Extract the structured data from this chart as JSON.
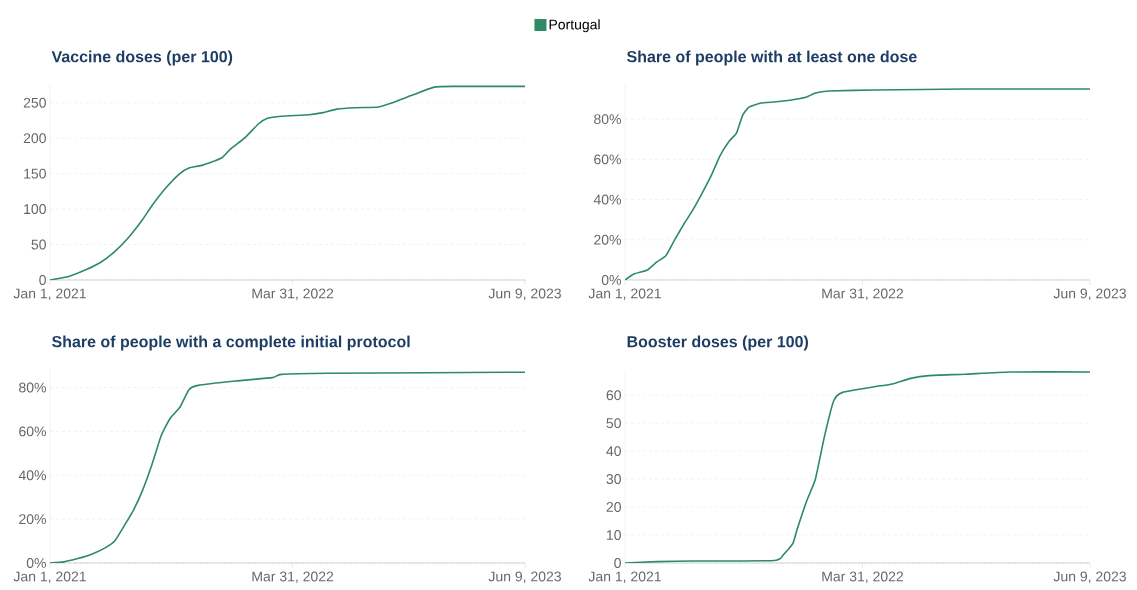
{
  "chart_data": [
    {
      "type": "line",
      "title": "Vaccine doses (per 100)",
      "legend": "top",
      "grid": "y",
      "marker": "none",
      "line_style": "solid",
      "x": [
        "2021-01-01",
        "2021-02-05",
        "2021-03-11",
        "2021-04-06",
        "2021-05-02",
        "2021-05-28",
        "2021-06-23",
        "2021-07-11",
        "2021-08-06",
        "2021-09-01",
        "2021-09-18",
        "2021-10-14",
        "2021-11-18",
        "2021-12-05",
        "2021-12-31",
        "2022-01-26",
        "2022-02-12",
        "2022-03-10",
        "2022-05-01",
        "2022-05-27",
        "2022-06-22",
        "2022-07-27",
        "2022-09-08",
        "2022-10-04",
        "2022-11-08",
        "2022-12-21",
        "2023-02-03",
        "2023-06-09"
      ],
      "series": [
        {
          "name": "Portugal",
          "color": "#2e8a66",
          "values": [
            0,
            5,
            15,
            25,
            40,
            60,
            85,
            105,
            130,
            150,
            158,
            162,
            172,
            185,
            200,
            220,
            228,
            231,
            233,
            236,
            241,
            243,
            244,
            250,
            260,
            272,
            273,
            273
          ]
        }
      ],
      "xlim": [
        "2021-01-01",
        "2023-06-09"
      ],
      "xticks": [
        {
          "value": "2021-01-01",
          "label": "Jan 1, 2021"
        },
        {
          "value": "2022-03-31",
          "label": "Mar 31, 2022"
        },
        {
          "value": "2023-06-09",
          "label": "Jun 9, 2023"
        }
      ],
      "ylim": [
        0,
        275
      ],
      "yticks": [
        0,
        50,
        100,
        150,
        200,
        250
      ]
    },
    {
      "type": "line",
      "title": "Share of people with at least one dose",
      "grid": "y",
      "marker": "none",
      "line_style": "solid",
      "x": [
        "2021-01-01",
        "2021-01-18",
        "2021-02-13",
        "2021-03-03",
        "2021-03-20",
        "2021-04-06",
        "2021-04-24",
        "2021-05-11",
        "2021-05-28",
        "2021-06-15",
        "2021-07-02",
        "2021-07-19",
        "2021-08-02",
        "2021-08-14",
        "2021-08-26",
        "2021-09-18",
        "2021-10-31",
        "2021-11-26",
        "2021-12-14",
        "2021-12-31",
        "2022-01-26",
        "2022-04-23",
        "2022-10-13",
        "2023-06-09"
      ],
      "series": [
        {
          "color": "#2e8a66",
          "values": [
            0,
            3,
            5,
            9,
            12,
            20,
            28,
            35,
            43,
            52,
            62,
            69,
            73,
            82,
            86,
            88,
            89,
            90,
            91,
            93,
            94,
            94.5,
            95,
            95
          ]
        }
      ],
      "xlim": [
        "2021-01-01",
        "2023-06-09"
      ],
      "xticks": [
        {
          "value": "2021-01-01",
          "label": "Jan 1, 2021"
        },
        {
          "value": "2022-03-31",
          "label": "Mar 31, 2022"
        },
        {
          "value": "2023-06-09",
          "label": "Jun 9, 2023"
        }
      ],
      "ylim": [
        0,
        97
      ],
      "yticks": [
        {
          "value": 0,
          "label": "0%"
        },
        {
          "value": 20,
          "label": "20%"
        },
        {
          "value": 40,
          "label": "40%"
        },
        {
          "value": 60,
          "label": "60%"
        },
        {
          "value": 80,
          "label": "80%"
        }
      ]
    },
    {
      "type": "line",
      "title": "Share of people with a complete initial protocol",
      "grid": "y",
      "marker": "none",
      "line_style": "solid",
      "x": [
        "2021-01-01",
        "2021-01-27",
        "2021-02-22",
        "2021-03-20",
        "2021-04-15",
        "2021-05-02",
        "2021-05-20",
        "2021-06-06",
        "2021-06-23",
        "2021-07-11",
        "2021-07-28",
        "2021-08-14",
        "2021-09-01",
        "2021-09-18",
        "2021-10-05",
        "2021-12-14",
        "2022-02-21",
        "2022-03-10",
        "2022-06-05",
        "2023-06-09"
      ],
      "series": [
        {
          "color": "#2e8a66",
          "values": [
            0,
            0.5,
            2,
            4,
            7,
            10,
            17,
            24,
            33,
            45,
            58,
            66,
            71,
            79,
            81,
            83,
            84.5,
            86,
            86.5,
            87
          ]
        }
      ],
      "xlim": [
        "2021-01-01",
        "2023-06-09"
      ],
      "xticks": [
        {
          "value": "2021-01-01",
          "label": "Jan 1, 2021"
        },
        {
          "value": "2022-03-31",
          "label": "Mar 31, 2022"
        },
        {
          "value": "2023-06-09",
          "label": "Jun 9, 2023"
        }
      ],
      "ylim": [
        0,
        88
      ],
      "yticks": [
        {
          "value": 0,
          "label": "0%"
        },
        {
          "value": 20,
          "label": "20%"
        },
        {
          "value": 40,
          "label": "40%"
        },
        {
          "value": 60,
          "label": "60%"
        },
        {
          "value": 80,
          "label": "80%"
        }
      ]
    },
    {
      "type": "line",
      "title": "Booster doses (per 100)",
      "grid": "y",
      "marker": "none",
      "line_style": "solid",
      "x": [
        "2021-01-01",
        "2021-03-03",
        "2021-05-11",
        "2021-10-14",
        "2021-10-31",
        "2021-11-18",
        "2021-11-26",
        "2021-12-14",
        "2021-12-31",
        "2022-01-17",
        "2022-02-04",
        "2022-02-21",
        "2022-04-23",
        "2022-05-27",
        "2022-07-01",
        "2022-08-05",
        "2022-10-13",
        "2023-01-08",
        "2023-06-09"
      ],
      "series": [
        {
          "color": "#2e8a66",
          "values": [
            0,
            0.5,
            0.7,
            0.9,
            3,
            7,
            12,
            22,
            30,
            45,
            58,
            61,
            63,
            64,
            66,
            67,
            67.5,
            68.3,
            68.3
          ]
        }
      ],
      "xlim": [
        "2021-01-01",
        "2023-06-09"
      ],
      "xticks": [
        {
          "value": "2021-01-01",
          "label": "Jan 1, 2021"
        },
        {
          "value": "2022-03-31",
          "label": "Mar 31, 2022"
        },
        {
          "value": "2023-06-09",
          "label": "Jun 9, 2023"
        }
      ],
      "ylim": [
        0,
        69
      ],
      "yticks": [
        0,
        10,
        20,
        30,
        40,
        50,
        60
      ]
    }
  ]
}
